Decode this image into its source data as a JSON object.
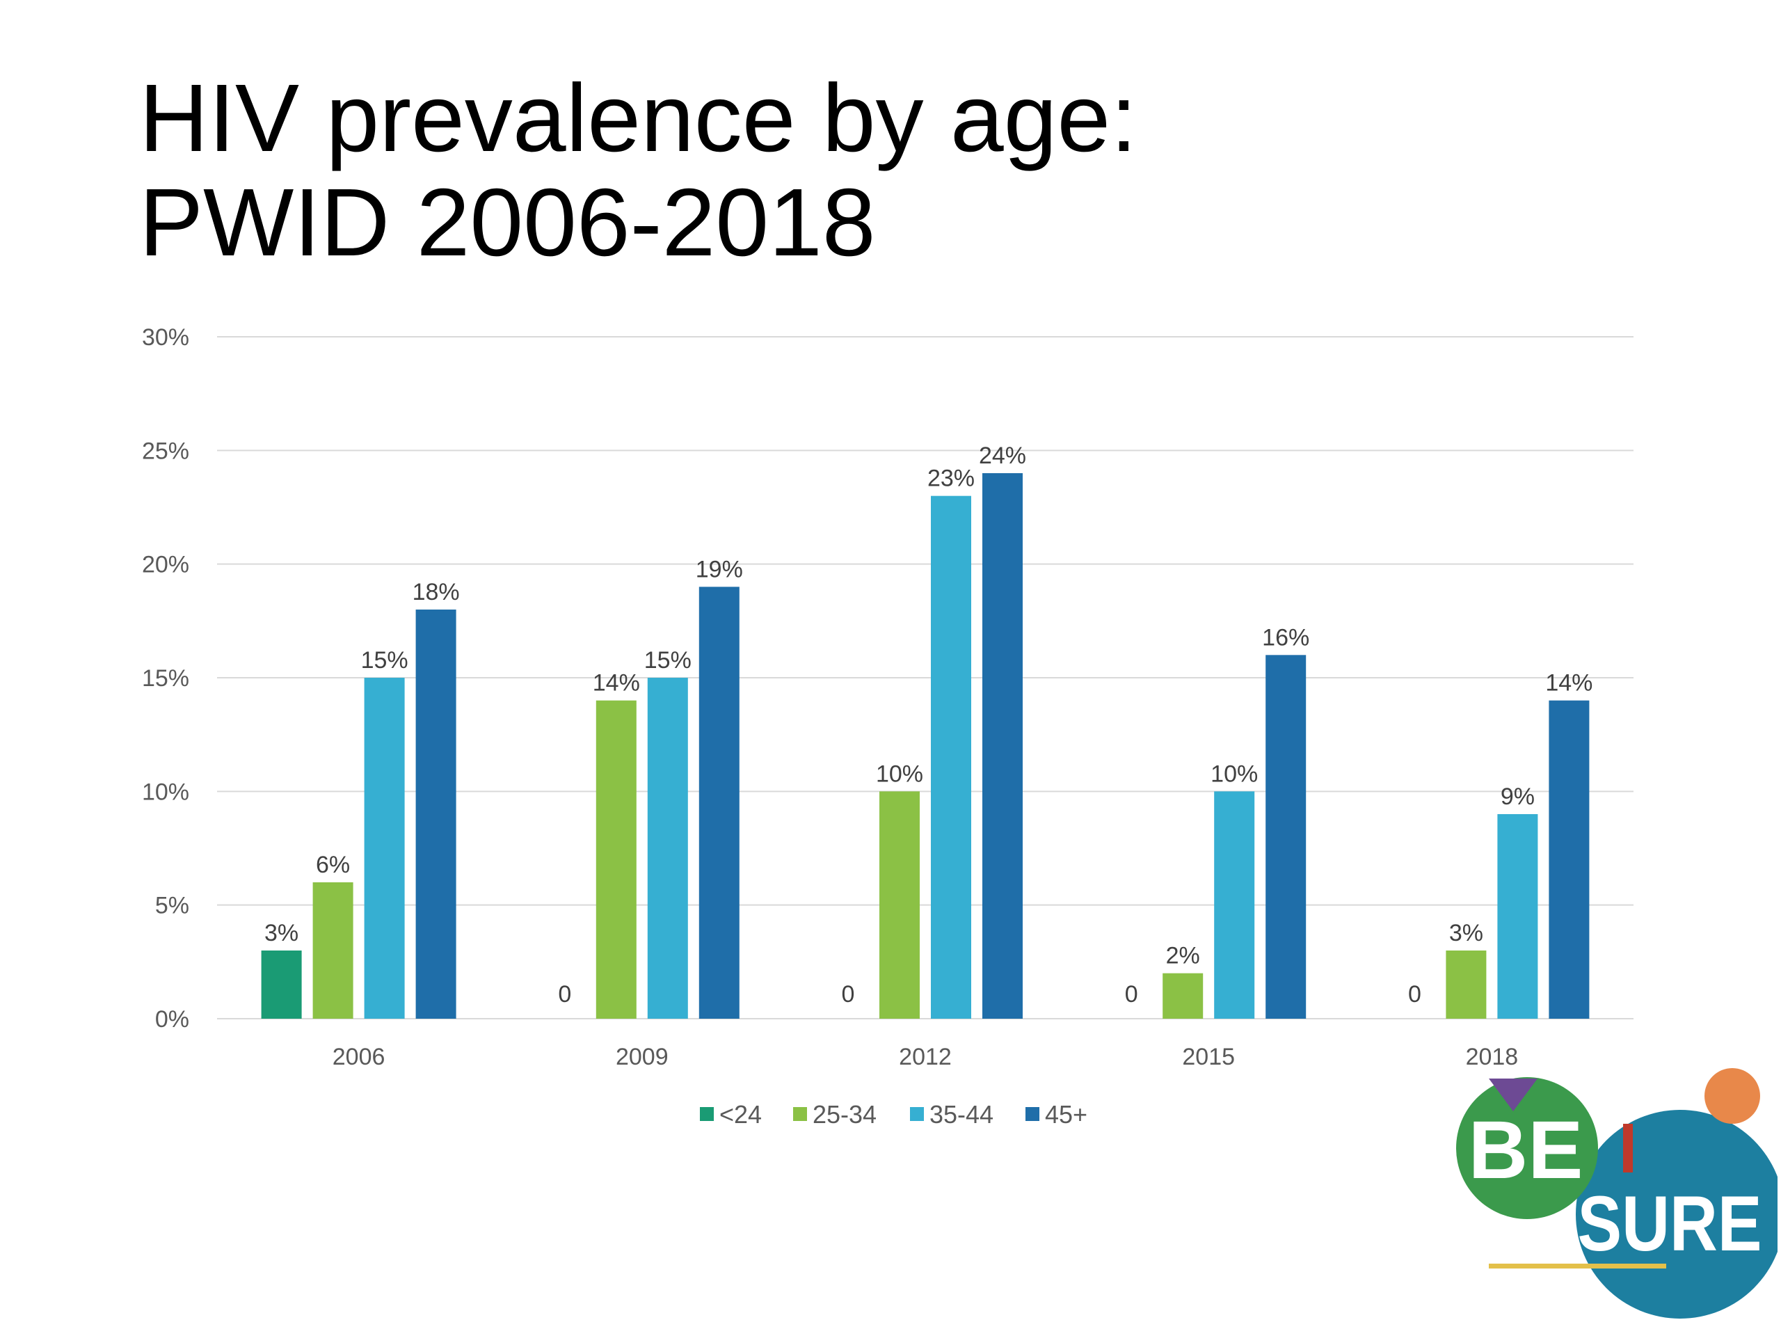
{
  "slide": {
    "title_line1": "HIV prevalence by age:",
    "title_line2": "PWID 2006-2018"
  },
  "chart_data": {
    "type": "bar",
    "categories": [
      "2006",
      "2009",
      "2012",
      "2015",
      "2018"
    ],
    "series": [
      {
        "name": "<24",
        "color": "#1a9b74",
        "values": [
          3,
          0,
          0,
          0,
          0
        ],
        "labels": [
          "3%",
          "0",
          "0",
          "0",
          "0"
        ]
      },
      {
        "name": "25-34",
        "color": "#8bc145",
        "values": [
          6,
          14,
          10,
          2,
          3
        ],
        "labels": [
          "6%",
          "14%",
          "10%",
          "2%",
          "3%"
        ]
      },
      {
        "name": "35-44",
        "color": "#36afd2",
        "values": [
          15,
          15,
          23,
          10,
          9
        ],
        "labels": [
          "15%",
          "15%",
          "23%",
          "10%",
          "9%"
        ]
      },
      {
        "name": "45+",
        "color": "#1f6ea9",
        "values": [
          18,
          19,
          24,
          16,
          14
        ],
        "labels": [
          "18%",
          "19%",
          "24%",
          "16%",
          "14%"
        ]
      }
    ],
    "ylim": [
      0,
      30
    ],
    "yticks": [
      0,
      5,
      10,
      15,
      20,
      25,
      30
    ],
    "ytick_labels": [
      "0%",
      "5%",
      "10%",
      "15%",
      "20%",
      "25%",
      "30%"
    ],
    "unit": "%",
    "grid": true,
    "legend_position": "bottom"
  },
  "logo": {
    "line1": "BE",
    "line2": "SURE",
    "colors": {
      "green": "#3b9a4c",
      "blue": "#1d7fa0",
      "orange": "#e8884a",
      "purple": "#6d4a94",
      "red": "#c0392b",
      "gold": "#e3c04a"
    }
  }
}
